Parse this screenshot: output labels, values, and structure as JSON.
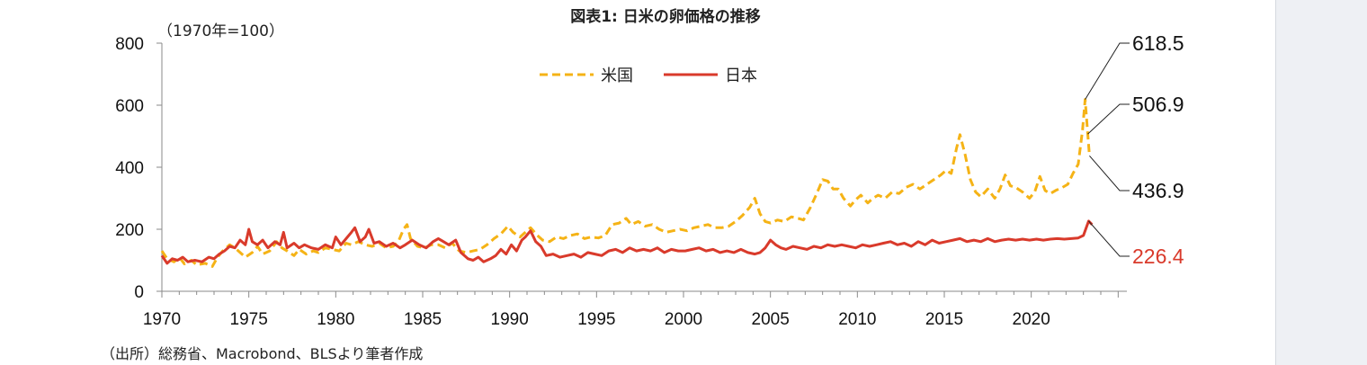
{
  "unit_label": "（1970年=100）",
  "source_note": "（出所）総務省、Macrobond、BLSより筆者作成",
  "chart_data": {
    "type": "line",
    "title": "図表1: 日米の卵価格の推移",
    "xlabel": "",
    "ylabel": "",
    "xlim": [
      1970,
      2025.5
    ],
    "ylim": [
      0,
      800
    ],
    "y_ticks": [
      "0",
      "200",
      "400",
      "600",
      "800"
    ],
    "x_ticks": [
      "1970",
      "1975",
      "1980",
      "1985",
      "1990",
      "1995",
      "2000",
      "2005",
      "2010",
      "2015",
      "2020"
    ],
    "grid": false,
    "legend_position": "top-center",
    "series": [
      {
        "name": "米国",
        "color": "#f5b316",
        "style": "dashed",
        "end_label": "618.5 / 506.9 / 436.9",
        "points": [
          [
            1970.0,
            130
          ],
          [
            1970.3,
            105
          ],
          [
            1970.7,
            95
          ],
          [
            1971.0,
            110
          ],
          [
            1971.3,
            88
          ],
          [
            1971.7,
            100
          ],
          [
            1972.0,
            85
          ],
          [
            1972.5,
            90
          ],
          [
            1972.9,
            80
          ],
          [
            1973.2,
            110
          ],
          [
            1973.5,
            130
          ],
          [
            1973.9,
            150
          ],
          [
            1974.2,
            140
          ],
          [
            1974.5,
            125
          ],
          [
            1974.8,
            110
          ],
          [
            1975.2,
            125
          ],
          [
            1975.5,
            145
          ],
          [
            1975.8,
            120
          ],
          [
            1976.2,
            130
          ],
          [
            1976.6,
            160
          ],
          [
            1976.9,
            140
          ],
          [
            1977.2,
            130
          ],
          [
            1977.6,
            115
          ],
          [
            1977.9,
            135
          ],
          [
            1978.3,
            120
          ],
          [
            1978.7,
            130
          ],
          [
            1979.0,
            125
          ],
          [
            1979.4,
            140
          ],
          [
            1979.8,
            135
          ],
          [
            1980.2,
            130
          ],
          [
            1980.6,
            155
          ],
          [
            1980.9,
            150
          ],
          [
            1981.3,
            160
          ],
          [
            1981.7,
            150
          ],
          [
            1982.1,
            145
          ],
          [
            1982.5,
            155
          ],
          [
            1982.9,
            140
          ],
          [
            1983.3,
            145
          ],
          [
            1983.6,
            160
          ],
          [
            1983.9,
            200
          ],
          [
            1984.1,
            215
          ],
          [
            1984.3,
            170
          ],
          [
            1984.7,
            145
          ],
          [
            1985.1,
            140
          ],
          [
            1985.5,
            150
          ],
          [
            1985.9,
            150
          ],
          [
            1986.3,
            140
          ],
          [
            1986.7,
            155
          ],
          [
            1987.1,
            130
          ],
          [
            1987.5,
            125
          ],
          [
            1987.9,
            130
          ],
          [
            1988.3,
            135
          ],
          [
            1988.7,
            150
          ],
          [
            1989.1,
            170
          ],
          [
            1989.5,
            185
          ],
          [
            1989.9,
            210
          ],
          [
            1990.2,
            190
          ],
          [
            1990.6,
            175
          ],
          [
            1990.9,
            190
          ],
          [
            1991.2,
            205
          ],
          [
            1991.6,
            180
          ],
          [
            1991.9,
            165
          ],
          [
            1992.3,
            160
          ],
          [
            1992.7,
            175
          ],
          [
            1993.1,
            170
          ],
          [
            1993.5,
            180
          ],
          [
            1993.9,
            185
          ],
          [
            1994.3,
            170
          ],
          [
            1994.7,
            175
          ],
          [
            1995.1,
            172
          ],
          [
            1995.5,
            180
          ],
          [
            1995.9,
            215
          ],
          [
            1996.3,
            220
          ],
          [
            1996.7,
            235
          ],
          [
            1997.0,
            215
          ],
          [
            1997.4,
            225
          ],
          [
            1997.8,
            210
          ],
          [
            1998.2,
            215
          ],
          [
            1998.6,
            200
          ],
          [
            1999.0,
            190
          ],
          [
            1999.4,
            195
          ],
          [
            1999.8,
            200
          ],
          [
            2000.2,
            195
          ],
          [
            2000.6,
            205
          ],
          [
            2001.0,
            210
          ],
          [
            2001.4,
            215
          ],
          [
            2001.8,
            205
          ],
          [
            2002.2,
            205
          ],
          [
            2002.6,
            210
          ],
          [
            2003.0,
            225
          ],
          [
            2003.4,
            245
          ],
          [
            2003.8,
            270
          ],
          [
            2004.1,
            300
          ],
          [
            2004.4,
            250
          ],
          [
            2004.7,
            225
          ],
          [
            2005.0,
            220
          ],
          [
            2005.4,
            230
          ],
          [
            2005.8,
            225
          ],
          [
            2006.2,
            240
          ],
          [
            2006.6,
            235
          ],
          [
            2006.9,
            230
          ],
          [
            2007.3,
            270
          ],
          [
            2007.7,
            320
          ],
          [
            2008.0,
            360
          ],
          [
            2008.3,
            355
          ],
          [
            2008.6,
            330
          ],
          [
            2008.9,
            330
          ],
          [
            2009.2,
            300
          ],
          [
            2009.6,
            275
          ],
          [
            2009.9,
            295
          ],
          [
            2010.2,
            310
          ],
          [
            2010.6,
            285
          ],
          [
            2010.9,
            300
          ],
          [
            2011.2,
            310
          ],
          [
            2011.6,
            300
          ],
          [
            2012.0,
            320
          ],
          [
            2012.4,
            315
          ],
          [
            2012.8,
            335
          ],
          [
            2013.2,
            345
          ],
          [
            2013.6,
            330
          ],
          [
            2014.0,
            345
          ],
          [
            2014.4,
            360
          ],
          [
            2014.8,
            375
          ],
          [
            2015.1,
            390
          ],
          [
            2015.4,
            380
          ],
          [
            2015.7,
            460
          ],
          [
            2015.9,
            505
          ],
          [
            2016.2,
            440
          ],
          [
            2016.5,
            360
          ],
          [
            2016.8,
            320
          ],
          [
            2017.1,
            305
          ],
          [
            2017.5,
            330
          ],
          [
            2017.9,
            300
          ],
          [
            2018.2,
            330
          ],
          [
            2018.5,
            375
          ],
          [
            2018.8,
            340
          ],
          [
            2019.1,
            335
          ],
          [
            2019.5,
            320
          ],
          [
            2019.9,
            300
          ],
          [
            2020.2,
            320
          ],
          [
            2020.5,
            370
          ],
          [
            2020.8,
            325
          ],
          [
            2021.1,
            315
          ],
          [
            2021.4,
            325
          ],
          [
            2021.8,
            335
          ],
          [
            2022.1,
            345
          ],
          [
            2022.4,
            380
          ],
          [
            2022.7,
            410
          ],
          [
            2022.95,
            520
          ],
          [
            2023.1,
            618.5
          ],
          [
            2023.25,
            506.9
          ],
          [
            2023.35,
            436.9
          ]
        ]
      },
      {
        "name": "日本",
        "color": "#d93a2b",
        "style": "solid",
        "end_label": "226.4",
        "points": [
          [
            1970.0,
            115
          ],
          [
            1970.3,
            90
          ],
          [
            1970.6,
            105
          ],
          [
            1970.9,
            100
          ],
          [
            1971.2,
            110
          ],
          [
            1971.5,
            95
          ],
          [
            1971.9,
            100
          ],
          [
            1972.3,
            95
          ],
          [
            1972.7,
            110
          ],
          [
            1973.0,
            105
          ],
          [
            1973.3,
            120
          ],
          [
            1973.6,
            130
          ],
          [
            1973.9,
            145
          ],
          [
            1974.2,
            140
          ],
          [
            1974.5,
            165
          ],
          [
            1974.8,
            150
          ],
          [
            1975.0,
            200
          ],
          [
            1975.2,
            160
          ],
          [
            1975.5,
            150
          ],
          [
            1975.8,
            165
          ],
          [
            1976.1,
            140
          ],
          [
            1976.5,
            160
          ],
          [
            1976.8,
            150
          ],
          [
            1977.0,
            190
          ],
          [
            1977.2,
            140
          ],
          [
            1977.6,
            155
          ],
          [
            1977.9,
            140
          ],
          [
            1978.2,
            150
          ],
          [
            1978.6,
            140
          ],
          [
            1979.0,
            135
          ],
          [
            1979.4,
            150
          ],
          [
            1979.8,
            140
          ],
          [
            1980.0,
            175
          ],
          [
            1980.3,
            150
          ],
          [
            1980.6,
            170
          ],
          [
            1980.9,
            190
          ],
          [
            1981.1,
            205
          ],
          [
            1981.4,
            160
          ],
          [
            1981.7,
            175
          ],
          [
            1981.9,
            200
          ],
          [
            1982.2,
            155
          ],
          [
            1982.5,
            160
          ],
          [
            1982.9,
            145
          ],
          [
            1983.3,
            155
          ],
          [
            1983.7,
            140
          ],
          [
            1984.0,
            150
          ],
          [
            1984.4,
            165
          ],
          [
            1984.8,
            150
          ],
          [
            1985.2,
            140
          ],
          [
            1985.6,
            160
          ],
          [
            1985.9,
            170
          ],
          [
            1986.2,
            160
          ],
          [
            1986.5,
            150
          ],
          [
            1986.9,
            165
          ],
          [
            1987.2,
            125
          ],
          [
            1987.6,
            105
          ],
          [
            1987.9,
            100
          ],
          [
            1988.2,
            110
          ],
          [
            1988.5,
            95
          ],
          [
            1988.9,
            105
          ],
          [
            1989.2,
            115
          ],
          [
            1989.5,
            135
          ],
          [
            1989.8,
            120
          ],
          [
            1990.1,
            150
          ],
          [
            1990.4,
            130
          ],
          [
            1990.7,
            165
          ],
          [
            1990.9,
            175
          ],
          [
            1991.2,
            195
          ],
          [
            1991.5,
            160
          ],
          [
            1991.8,
            145
          ],
          [
            1992.1,
            115
          ],
          [
            1992.5,
            120
          ],
          [
            1992.9,
            110
          ],
          [
            1993.3,
            115
          ],
          [
            1993.7,
            120
          ],
          [
            1994.1,
            110
          ],
          [
            1994.5,
            125
          ],
          [
            1994.9,
            120
          ],
          [
            1995.3,
            115
          ],
          [
            1995.7,
            130
          ],
          [
            1996.1,
            135
          ],
          [
            1996.5,
            125
          ],
          [
            1996.9,
            140
          ],
          [
            1997.3,
            130
          ],
          [
            1997.7,
            135
          ],
          [
            1998.1,
            130
          ],
          [
            1998.5,
            140
          ],
          [
            1998.9,
            125
          ],
          [
            1999.3,
            135
          ],
          [
            1999.7,
            130
          ],
          [
            2000.1,
            130
          ],
          [
            2000.5,
            135
          ],
          [
            2000.9,
            140
          ],
          [
            2001.3,
            130
          ],
          [
            2001.7,
            135
          ],
          [
            2002.1,
            125
          ],
          [
            2002.5,
            130
          ],
          [
            2002.9,
            125
          ],
          [
            2003.3,
            135
          ],
          [
            2003.7,
            125
          ],
          [
            2004.1,
            120
          ],
          [
            2004.4,
            125
          ],
          [
            2004.7,
            140
          ],
          [
            2005.0,
            165
          ],
          [
            2005.3,
            150
          ],
          [
            2005.6,
            140
          ],
          [
            2005.9,
            135
          ],
          [
            2006.3,
            145
          ],
          [
            2006.7,
            140
          ],
          [
            2007.1,
            135
          ],
          [
            2007.5,
            145
          ],
          [
            2007.9,
            140
          ],
          [
            2008.3,
            150
          ],
          [
            2008.7,
            145
          ],
          [
            2009.1,
            150
          ],
          [
            2009.5,
            145
          ],
          [
            2009.9,
            140
          ],
          [
            2010.3,
            150
          ],
          [
            2010.7,
            145
          ],
          [
            2011.1,
            150
          ],
          [
            2011.5,
            155
          ],
          [
            2011.9,
            160
          ],
          [
            2012.3,
            150
          ],
          [
            2012.7,
            155
          ],
          [
            2013.1,
            145
          ],
          [
            2013.5,
            160
          ],
          [
            2013.9,
            150
          ],
          [
            2014.3,
            165
          ],
          [
            2014.7,
            155
          ],
          [
            2015.1,
            160
          ],
          [
            2015.5,
            165
          ],
          [
            2015.9,
            170
          ],
          [
            2016.3,
            160
          ],
          [
            2016.7,
            165
          ],
          [
            2017.1,
            160
          ],
          [
            2017.5,
            170
          ],
          [
            2017.9,
            160
          ],
          [
            2018.3,
            165
          ],
          [
            2018.7,
            168
          ],
          [
            2019.1,
            165
          ],
          [
            2019.5,
            168
          ],
          [
            2019.9,
            165
          ],
          [
            2020.3,
            168
          ],
          [
            2020.7,
            165
          ],
          [
            2021.1,
            168
          ],
          [
            2021.5,
            170
          ],
          [
            2021.9,
            168
          ],
          [
            2022.3,
            170
          ],
          [
            2022.7,
            172
          ],
          [
            2023.0,
            180
          ],
          [
            2023.3,
            226.4
          ],
          [
            2023.5,
            215
          ]
        ]
      }
    ]
  }
}
